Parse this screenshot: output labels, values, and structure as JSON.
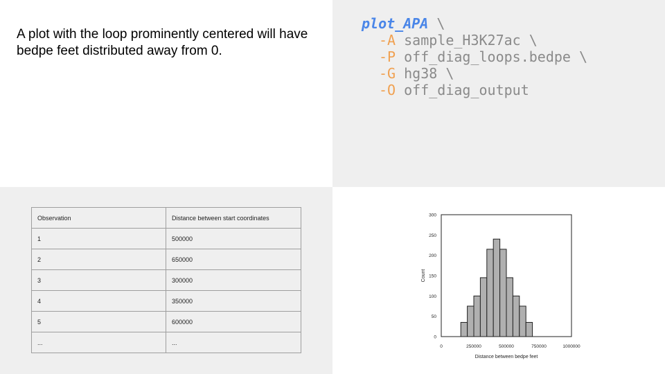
{
  "caption": "A plot with the loop prominently centered will have bedpe feet distributed away from 0.",
  "code": {
    "command": "plot_APA",
    "args": [
      {
        "flag": "-A",
        "value": "sample_H3K27ac"
      },
      {
        "flag": "-P",
        "value": "off_diag_loops.bedpe"
      },
      {
        "flag": "-G",
        "value": "hg38"
      },
      {
        "flag": "-O",
        "value": "off_diag_output"
      }
    ],
    "continuation": "\\"
  },
  "table": {
    "headers": [
      "Observation",
      "Distance between start coordinates"
    ],
    "rows": [
      [
        "1",
        "500000"
      ],
      [
        "2",
        "650000"
      ],
      [
        "3",
        "300000"
      ],
      [
        "4",
        "350000"
      ],
      [
        "5",
        "600000"
      ],
      [
        "...",
        "..."
      ]
    ]
  },
  "chart_data": {
    "type": "bar",
    "xlabel": "Distance between bedpe feet",
    "ylabel": "Count",
    "xlim": [
      0,
      1000000
    ],
    "ylim": [
      0,
      300
    ],
    "xticks": [
      0,
      250000,
      500000,
      750000,
      1000000
    ],
    "xtick_labels": [
      "0",
      "250000",
      "500000",
      "750000",
      "1000000"
    ],
    "yticks": [
      0,
      50,
      100,
      150,
      200,
      250,
      300
    ],
    "ytick_labels": [
      "0",
      "50",
      "100",
      "150",
      "200",
      "250",
      "300"
    ],
    "bin_width": 50000,
    "bins": [
      {
        "x0": 150000,
        "count": 35
      },
      {
        "x0": 200000,
        "count": 75
      },
      {
        "x0": 250000,
        "count": 100
      },
      {
        "x0": 300000,
        "count": 145
      },
      {
        "x0": 350000,
        "count": 215
      },
      {
        "x0": 400000,
        "count": 240
      },
      {
        "x0": 450000,
        "count": 215
      },
      {
        "x0": 500000,
        "count": 145
      },
      {
        "x0": 550000,
        "count": 100
      },
      {
        "x0": 600000,
        "count": 75
      },
      {
        "x0": 650000,
        "count": 35
      }
    ],
    "bar_color": "#b0b0b0",
    "edge_color": "#222222",
    "grid": false
  }
}
